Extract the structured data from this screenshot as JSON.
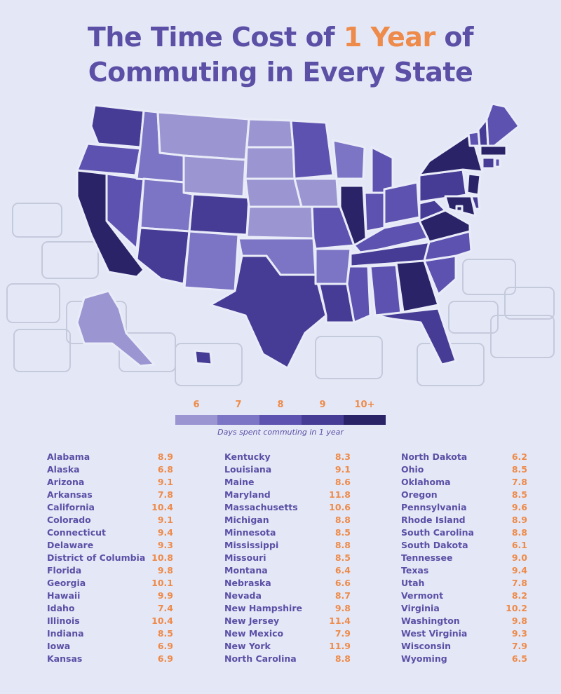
{
  "title": {
    "line1_pre": "The Time Cost of",
    "line1_highlight": "1 Year",
    "line1_post": "of",
    "line2": "Commuting in Every State"
  },
  "colors": {
    "background": "#e4e8f6",
    "title": "#5b4fa6",
    "highlight": "#ee8a4a",
    "scale": [
      "#9b96d2",
      "#7c74c4",
      "#5e52b0",
      "#463c95",
      "#2a2368"
    ]
  },
  "chart_data": {
    "type": "table",
    "subtype": "choropleth-map",
    "title": "The Time Cost of 1 Year of Commuting in Every State",
    "legend": {
      "labels": [
        "6",
        "7",
        "8",
        "9",
        "10+"
      ],
      "caption": "Days spent commuting in 1 year"
    },
    "columns": [
      [
        {
          "state": "Alabama",
          "value": "8.9"
        },
        {
          "state": "Alaska",
          "value": "6.8"
        },
        {
          "state": "Arizona",
          "value": "9.1"
        },
        {
          "state": "Arkansas",
          "value": "7.8"
        },
        {
          "state": "California",
          "value": "10.4"
        },
        {
          "state": "Colorado",
          "value": "9.1"
        },
        {
          "state": "Connecticut",
          "value": "9.4"
        },
        {
          "state": "Delaware",
          "value": "9.3"
        },
        {
          "state": "District of Columbia",
          "value": "10.8"
        },
        {
          "state": "Florida",
          "value": "9.8"
        },
        {
          "state": "Georgia",
          "value": "10.1"
        },
        {
          "state": "Hawaii",
          "value": "9.9"
        },
        {
          "state": "Idaho",
          "value": "7.4"
        },
        {
          "state": "Illinois",
          "value": "10.4"
        },
        {
          "state": "Indiana",
          "value": "8.5"
        },
        {
          "state": "Iowa",
          "value": "6.9"
        },
        {
          "state": "Kansas",
          "value": "6.9"
        }
      ],
      [
        {
          "state": "Kentucky",
          "value": "8.3"
        },
        {
          "state": "Louisiana",
          "value": "9.1"
        },
        {
          "state": "Maine",
          "value": "8.6"
        },
        {
          "state": "Maryland",
          "value": "11.8"
        },
        {
          "state": "Massachusetts",
          "value": "10.6"
        },
        {
          "state": "Michigan",
          "value": "8.8"
        },
        {
          "state": "Minnesota",
          "value": "8.5"
        },
        {
          "state": "Mississippi",
          "value": "8.8"
        },
        {
          "state": "Missouri",
          "value": "8.5"
        },
        {
          "state": "Montana",
          "value": "6.4"
        },
        {
          "state": "Nebraska",
          "value": "6.6"
        },
        {
          "state": "Nevada",
          "value": "8.7"
        },
        {
          "state": "New Hampshire",
          "value": "9.8"
        },
        {
          "state": "New Jersey",
          "value": "11.4"
        },
        {
          "state": "New Mexico",
          "value": "7.9"
        },
        {
          "state": "New York",
          "value": "11.9"
        },
        {
          "state": "North Carolina",
          "value": "8.8"
        }
      ],
      [
        {
          "state": "North Dakota",
          "value": "6.2"
        },
        {
          "state": "Ohio",
          "value": "8.5"
        },
        {
          "state": "Oklahoma",
          "value": "7.8"
        },
        {
          "state": "Oregon",
          "value": "8.5"
        },
        {
          "state": "Pennsylvania",
          "value": "9.6"
        },
        {
          "state": "Rhode Island",
          "value": "8.9"
        },
        {
          "state": "South Carolina",
          "value": "8.8"
        },
        {
          "state": "South Dakota",
          "value": "6.1"
        },
        {
          "state": "Tennessee",
          "value": "9.0"
        },
        {
          "state": "Texas",
          "value": "9.4"
        },
        {
          "state": "Utah",
          "value": "7.8"
        },
        {
          "state": "Vermont",
          "value": "8.2"
        },
        {
          "state": "Virginia",
          "value": "10.2"
        },
        {
          "state": "Washington",
          "value": "9.8"
        },
        {
          "state": "West Virginia",
          "value": "9.3"
        },
        {
          "state": "Wisconsin",
          "value": "7.9"
        },
        {
          "state": "Wyoming",
          "value": "6.5"
        }
      ]
    ]
  }
}
